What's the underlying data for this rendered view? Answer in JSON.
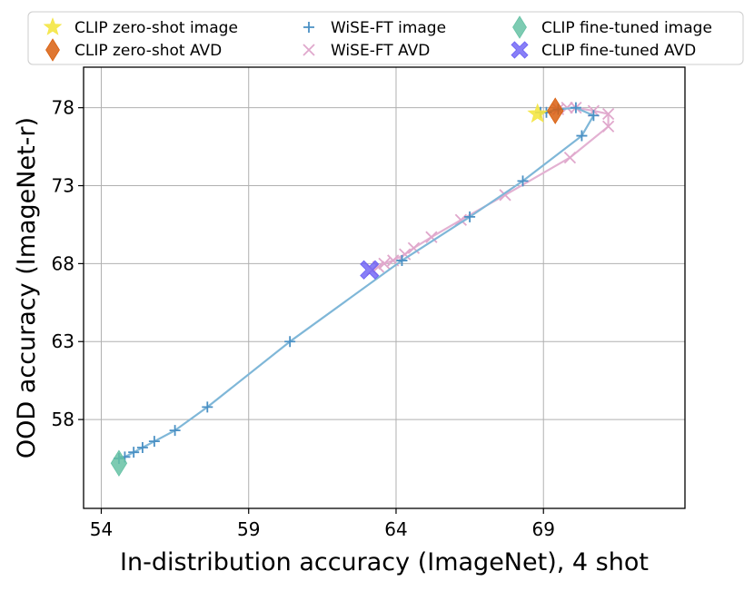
{
  "chart_data": {
    "type": "scatter",
    "xlabel": "In-distribution accuracy (ImageNet), 4 shot",
    "ylabel": "OOD accuracy (ImageNet-r)",
    "xlim": [
      53.4,
      73.8
    ],
    "ylim": [
      52.3,
      80.6
    ],
    "xticks": [
      54,
      59,
      64,
      69
    ],
    "yticks": [
      58,
      63,
      68,
      73,
      78
    ],
    "xtick_labels": [
      "54",
      "59",
      "64",
      "69"
    ],
    "ytick_labels": [
      "58",
      "63",
      "68",
      "73",
      "78"
    ],
    "grid": true,
    "legend_placement": "top",
    "series": [
      {
        "name": "CLIP zero-shot image",
        "marker": "star",
        "color": "#f4e542",
        "connected": false,
        "points": [
          [
            68.8,
            77.6
          ]
        ]
      },
      {
        "name": "CLIP zero-shot AVD",
        "marker": "diamond",
        "color": "#d95f0e",
        "connected": false,
        "points": [
          [
            69.4,
            77.8
          ]
        ]
      },
      {
        "name": "WiSE-FT image",
        "marker": "plus",
        "color": "#4a90c4",
        "line_color": "#7fb7d8",
        "connected": true,
        "points": [
          [
            54.6,
            55.5
          ],
          [
            54.8,
            55.6
          ],
          [
            55.1,
            55.9
          ],
          [
            55.4,
            56.2
          ],
          [
            55.8,
            56.6
          ],
          [
            56.5,
            57.3
          ],
          [
            57.6,
            58.8
          ],
          [
            60.4,
            63.0
          ],
          [
            64.2,
            68.2
          ],
          [
            66.5,
            71.0
          ],
          [
            68.3,
            73.3
          ],
          [
            70.3,
            76.2
          ],
          [
            70.7,
            77.5
          ],
          [
            70.1,
            78.0
          ],
          [
            69.5,
            77.9
          ],
          [
            69.1,
            77.7
          ],
          [
            68.9,
            77.7
          ]
        ]
      },
      {
        "name": "WiSE-FT AVD",
        "marker": "x",
        "color": "#e0a8cc",
        "line_color": "#e3b1d2",
        "connected": true,
        "points": [
          [
            63.2,
            67.6
          ],
          [
            63.4,
            67.8
          ],
          [
            63.6,
            68.0
          ],
          [
            63.9,
            68.2
          ],
          [
            64.3,
            68.6
          ],
          [
            64.6,
            69.0
          ],
          [
            65.2,
            69.7
          ],
          [
            66.2,
            70.8
          ],
          [
            67.7,
            72.4
          ],
          [
            69.9,
            74.8
          ],
          [
            71.2,
            76.8
          ],
          [
            71.2,
            77.6
          ],
          [
            70.7,
            77.8
          ],
          [
            70.1,
            78.0
          ],
          [
            69.8,
            78.0
          ],
          [
            69.5,
            77.9
          ]
        ]
      },
      {
        "name": "CLIP fine-tuned image",
        "marker": "diamond",
        "color": "#66c2a5",
        "connected": false,
        "points": [
          [
            54.6,
            55.2
          ]
        ]
      },
      {
        "name": "CLIP fine-tuned AVD",
        "marker": "cross",
        "color": "#6a5ff5",
        "connected": false,
        "points": [
          [
            63.1,
            67.6
          ]
        ]
      }
    ]
  }
}
